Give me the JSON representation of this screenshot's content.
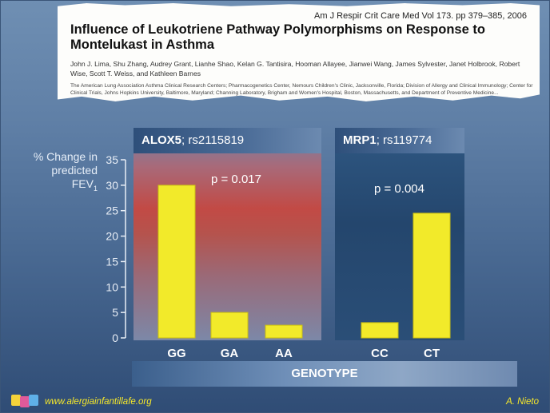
{
  "paper": {
    "citation": "Am J Respir Crit Care Med   Vol 173. pp 379–385, 2006",
    "title": "Influence of Leukotriene Pathway Polymorphisms on Response to Montelukast in Asthma",
    "authors": "John J. Lima, Shu Zhang, Audrey Grant, Lianhe Shao, Kelan G. Tantisira, Hooman Allayee, Jianwei Wang, James Sylvester, Janet Holbrook, Robert Wise, Scott T. Weiss, and Kathleen Barnes",
    "affiliations": "The American Lung Association Asthma Clinical Research Centers; Pharmacogenetics Center, Nemours Children's Clinic, Jacksonville, Florida; Division of Allergy and Clinical Immunology; Center for Clinical Trials, Johns Hopkins University, Baltimore, Maryland; Channing Laboratory, Brigham and Women's Hospital, Boston, Massachusetts, and Department of Preventive Medicine..."
  },
  "footer": {
    "url": "www.alergiainfantillafe.org",
    "author": "A. Nieto"
  },
  "colors": {
    "bar": "#f2ea2a",
    "bar_edge": "#c9be12",
    "text_light": "#ffffff",
    "footer_text": "#f6e82a"
  },
  "chart_data": {
    "type": "bar",
    "ylabel_main": "% Change in predicted FEV",
    "ylabel_sub": "1",
    "xlabel": "GENOTYPE",
    "ylim": [
      0,
      35
    ],
    "yticks": [
      "0",
      "5",
      "10",
      "15",
      "20",
      "25",
      "30",
      "35"
    ],
    "groups": [
      {
        "gene": "ALOX5",
        "snp": "; rs2115819",
        "p_value": "p = 0.017",
        "categories": [
          "GG",
          "GA",
          "AA"
        ],
        "values": [
          30,
          5,
          2.5
        ]
      },
      {
        "gene": "MRP1",
        "snp": "; rs119774",
        "p_value": "p = 0.004",
        "categories": [
          "CC",
          "CT"
        ],
        "values": [
          3,
          24.5
        ]
      }
    ]
  }
}
